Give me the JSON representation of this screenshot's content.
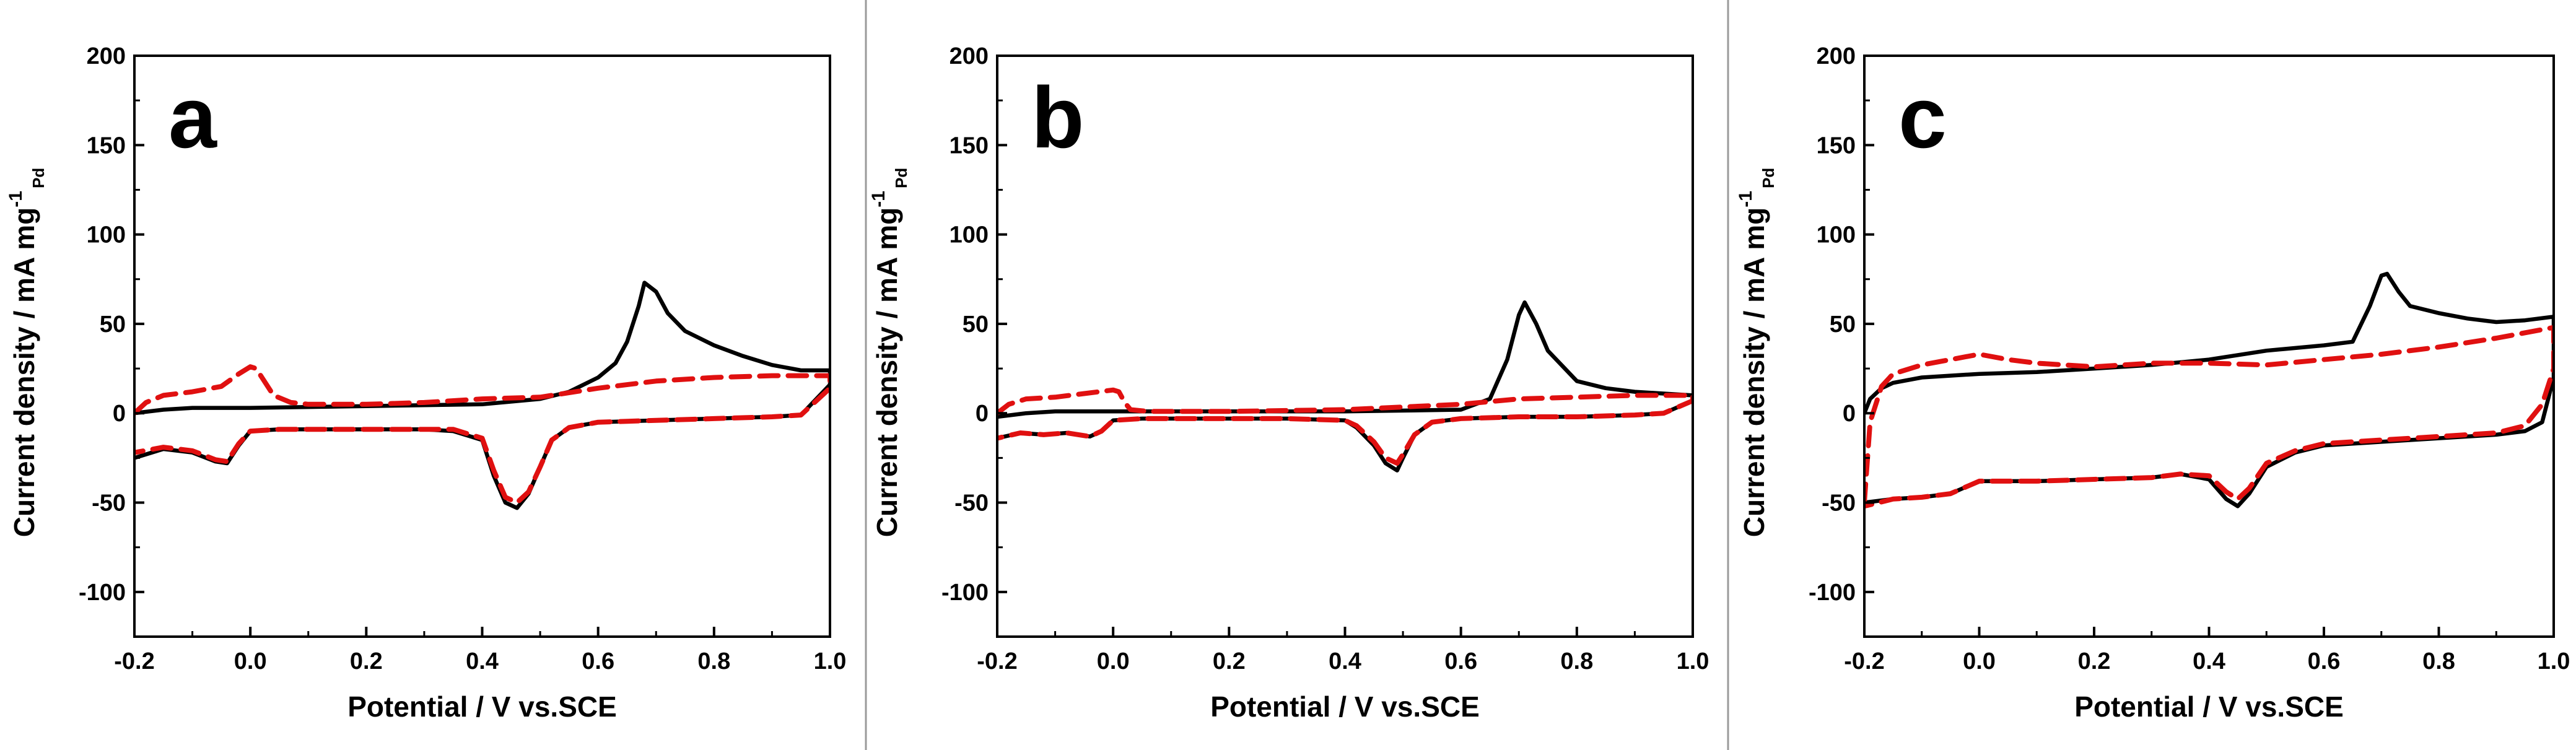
{
  "chart_data": [
    {
      "type": "line",
      "panel_label": "a",
      "xlabel": "Potential / V vs.SCE",
      "ylabel_main": "Current density / mA mg",
      "ylabel_sup": "-1",
      "ylabel_sub": "Pd",
      "xlim": [
        -0.2,
        1.0
      ],
      "ylim": [
        -125,
        200
      ],
      "xticks": [
        "-0.2",
        "0.0",
        "0.2",
        "0.4",
        "0.6",
        "0.8",
        "1.0"
      ],
      "yticks": [
        "-100",
        "-50",
        "0",
        "50",
        "100",
        "150",
        "200"
      ],
      "series": [
        {
          "name": "solid",
          "color": "#000000",
          "style": "solid",
          "x": [
            -0.2,
            -0.15,
            -0.1,
            0.0,
            0.2,
            0.4,
            0.5,
            0.55,
            0.6,
            0.63,
            0.65,
            0.67,
            0.68,
            0.7,
            0.72,
            0.75,
            0.8,
            0.85,
            0.9,
            0.95,
            1.0,
            1.0,
            0.95,
            0.9,
            0.8,
            0.7,
            0.6,
            0.55,
            0.52,
            0.5,
            0.48,
            0.46,
            0.44,
            0.42,
            0.4,
            0.35,
            0.3,
            0.2,
            0.1,
            0.05,
            0.0,
            -0.02,
            -0.04,
            -0.06,
            -0.1,
            -0.15,
            -0.2
          ],
          "y": [
            0,
            2,
            3,
            3,
            4,
            5,
            8,
            12,
            20,
            28,
            40,
            60,
            73,
            68,
            56,
            46,
            38,
            32,
            27,
            24,
            24,
            16,
            -1,
            -2,
            -3,
            -4,
            -5,
            -8,
            -15,
            -30,
            -45,
            -53,
            -50,
            -35,
            -15,
            -10,
            -9,
            -9,
            -9,
            -9,
            -10,
            -18,
            -28,
            -27,
            -22,
            -20,
            -25
          ]
        },
        {
          "name": "dashed",
          "color": "#e01010",
          "style": "dashed",
          "x": [
            -0.2,
            -0.18,
            -0.15,
            -0.1,
            -0.05,
            -0.02,
            0.0,
            0.01,
            0.02,
            0.04,
            0.07,
            0.1,
            0.2,
            0.3,
            0.4,
            0.5,
            0.6,
            0.7,
            0.8,
            0.9,
            1.0,
            1.0,
            0.95,
            0.9,
            0.8,
            0.7,
            0.6,
            0.55,
            0.52,
            0.5,
            0.48,
            0.46,
            0.44,
            0.42,
            0.4,
            0.35,
            0.3,
            0.2,
            0.1,
            0.05,
            0.0,
            -0.02,
            -0.04,
            -0.06,
            -0.1,
            -0.15,
            -0.2
          ],
          "y": [
            0,
            6,
            10,
            12,
            15,
            22,
            26,
            25,
            20,
            10,
            6,
            5,
            5,
            6,
            8,
            9,
            14,
            18,
            20,
            21,
            21,
            14,
            -1,
            -2,
            -3,
            -4,
            -5,
            -8,
            -15,
            -30,
            -44,
            -50,
            -47,
            -32,
            -14,
            -9,
            -9,
            -9,
            -9,
            -9,
            -10,
            -17,
            -27,
            -26,
            -21,
            -19,
            -22
          ]
        }
      ]
    },
    {
      "type": "line",
      "panel_label": "b",
      "xlabel": "Potential / V vs.SCE",
      "ylabel_main": "Current density / mA mg",
      "ylabel_sup": "-1",
      "ylabel_sub": "Pd",
      "xlim": [
        -0.2,
        1.0
      ],
      "ylim": [
        -125,
        200
      ],
      "xticks": [
        "-0.2",
        "0.0",
        "0.2",
        "0.4",
        "0.6",
        "0.8",
        "1.0"
      ],
      "yticks": [
        "-100",
        "-50",
        "0",
        "50",
        "100",
        "150",
        "200"
      ],
      "series": [
        {
          "name": "solid",
          "color": "#000000",
          "style": "solid",
          "x": [
            -0.2,
            -0.15,
            -0.1,
            0.0,
            0.2,
            0.4,
            0.6,
            0.65,
            0.68,
            0.7,
            0.71,
            0.73,
            0.75,
            0.8,
            0.85,
            0.9,
            0.95,
            1.0,
            1.0,
            0.95,
            0.9,
            0.8,
            0.7,
            0.6,
            0.55,
            0.52,
            0.5,
            0.49,
            0.47,
            0.45,
            0.42,
            0.4,
            0.3,
            0.2,
            0.1,
            0.05,
            0.0,
            -0.02,
            -0.04,
            -0.08,
            -0.12,
            -0.16,
            -0.2
          ],
          "y": [
            -2,
            0,
            1,
            1,
            1,
            1,
            2,
            8,
            30,
            55,
            62,
            50,
            35,
            18,
            14,
            12,
            11,
            10,
            7,
            0,
            -1,
            -2,
            -2,
            -3,
            -5,
            -12,
            -25,
            -32,
            -28,
            -18,
            -8,
            -4,
            -3,
            -3,
            -3,
            -3,
            -4,
            -10,
            -13,
            -11,
            -12,
            -11,
            -14
          ]
        },
        {
          "name": "dashed",
          "color": "#e01010",
          "style": "dashed",
          "x": [
            -0.2,
            -0.18,
            -0.15,
            -0.1,
            -0.05,
            0.0,
            0.01,
            0.02,
            0.03,
            0.06,
            0.2,
            0.4,
            0.6,
            0.7,
            0.8,
            0.9,
            1.0,
            1.0,
            0.95,
            0.9,
            0.8,
            0.7,
            0.6,
            0.55,
            0.52,
            0.5,
            0.49,
            0.47,
            0.45,
            0.42,
            0.4,
            0.3,
            0.2,
            0.1,
            0.05,
            0.0,
            -0.02,
            -0.04,
            -0.08,
            -0.12,
            -0.16,
            -0.2
          ],
          "y": [
            0,
            5,
            8,
            9,
            11,
            13,
            12,
            6,
            2,
            1,
            1,
            2,
            5,
            8,
            9,
            10,
            10,
            7,
            0,
            -1,
            -2,
            -2,
            -3,
            -5,
            -12,
            -23,
            -28,
            -25,
            -16,
            -7,
            -4,
            -3,
            -3,
            -3,
            -3,
            -4,
            -10,
            -13,
            -11,
            -12,
            -11,
            -14
          ]
        }
      ]
    },
    {
      "type": "line",
      "panel_label": "c",
      "xlabel": "Potential / V vs.SCE",
      "ylabel_main": "Current density / mA mg",
      "ylabel_sup": "-1",
      "ylabel_sub": "Pd",
      "xlim": [
        -0.2,
        1.0
      ],
      "ylim": [
        -125,
        200
      ],
      "xticks": [
        "-0.2",
        "0.0",
        "0.2",
        "0.4",
        "0.6",
        "0.8",
        "1.0"
      ],
      "yticks": [
        "-100",
        "-50",
        "0",
        "50",
        "100",
        "150",
        "200"
      ],
      "series": [
        {
          "name": "solid",
          "color": "#000000",
          "style": "solid",
          "x": [
            -0.2,
            -0.19,
            -0.17,
            -0.15,
            -0.1,
            0.0,
            0.1,
            0.2,
            0.3,
            0.4,
            0.5,
            0.6,
            0.65,
            0.68,
            0.7,
            0.71,
            0.73,
            0.75,
            0.8,
            0.85,
            0.9,
            0.95,
            1.0,
            1.0,
            0.98,
            0.95,
            0.9,
            0.8,
            0.7,
            0.6,
            0.55,
            0.5,
            0.47,
            0.45,
            0.43,
            0.4,
            0.35,
            0.3,
            0.2,
            0.1,
            0.0,
            -0.05,
            -0.1,
            -0.15,
            -0.2
          ],
          "y": [
            0,
            8,
            14,
            17,
            20,
            22,
            23,
            25,
            27,
            30,
            35,
            38,
            40,
            60,
            77,
            78,
            68,
            60,
            56,
            53,
            51,
            52,
            54,
            20,
            -5,
            -10,
            -12,
            -14,
            -16,
            -18,
            -22,
            -30,
            -45,
            -52,
            -48,
            -37,
            -34,
            -36,
            -37,
            -38,
            -38,
            -45,
            -47,
            -48,
            -50
          ]
        },
        {
          "name": "dashed",
          "color": "#e01010",
          "style": "dashed",
          "x": [
            -0.2,
            -0.19,
            -0.17,
            -0.15,
            -0.1,
            -0.05,
            0.0,
            0.05,
            0.1,
            0.2,
            0.3,
            0.4,
            0.5,
            0.6,
            0.7,
            0.8,
            0.9,
            1.0,
            1.0,
            0.98,
            0.95,
            0.9,
            0.8,
            0.7,
            0.6,
            0.55,
            0.5,
            0.47,
            0.45,
            0.43,
            0.4,
            0.35,
            0.3,
            0.2,
            0.1,
            0.0,
            -0.05,
            -0.1,
            -0.15,
            -0.2
          ],
          "y": [
            -50,
            -5,
            15,
            22,
            27,
            30,
            33,
            30,
            28,
            26,
            28,
            28,
            27,
            30,
            33,
            37,
            42,
            48,
            25,
            5,
            -7,
            -11,
            -13,
            -15,
            -17,
            -21,
            -28,
            -42,
            -48,
            -44,
            -35,
            -34,
            -36,
            -37,
            -38,
            -38,
            -45,
            -47,
            -48,
            -52
          ]
        }
      ]
    }
  ]
}
